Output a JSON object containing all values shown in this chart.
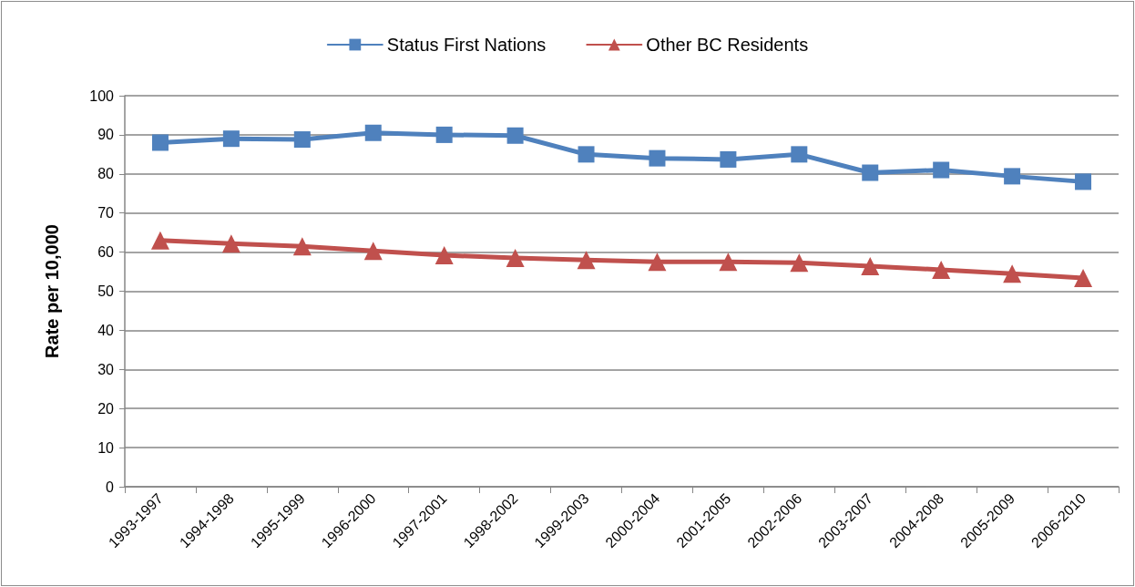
{
  "chart_data": {
    "type": "line",
    "categories": [
      "1993-1997",
      "1994-1998",
      "1995-1999",
      "1996-2000",
      "1997-2001",
      "1998-2002",
      "1999-2003",
      "2000-2004",
      "2001-2005",
      "2002-2006",
      "2003-2007",
      "2004-2008",
      "2005-2009",
      "2006-2010"
    ],
    "series": [
      {
        "name": "Status First Nations",
        "color": "#4f81bd",
        "marker": "square",
        "values": [
          88,
          89,
          88.8,
          90.5,
          90,
          89.8,
          85,
          84,
          83.7,
          85,
          80.3,
          81,
          79.4,
          78
        ]
      },
      {
        "name": "Other BC Residents",
        "color": "#c0504d",
        "marker": "triangle",
        "values": [
          63,
          62.2,
          61.5,
          60.3,
          59.2,
          58.5,
          58,
          57.5,
          57.5,
          57.3,
          56.4,
          55.5,
          54.5,
          53.4
        ]
      }
    ],
    "ylabel": "Rate per 10,000",
    "ylim": [
      0,
      100
    ],
    "yticks": [
      0,
      10,
      20,
      30,
      40,
      50,
      60,
      70,
      80,
      90,
      100
    ],
    "grid": "y",
    "legend": "top",
    "line_style": "solid"
  }
}
